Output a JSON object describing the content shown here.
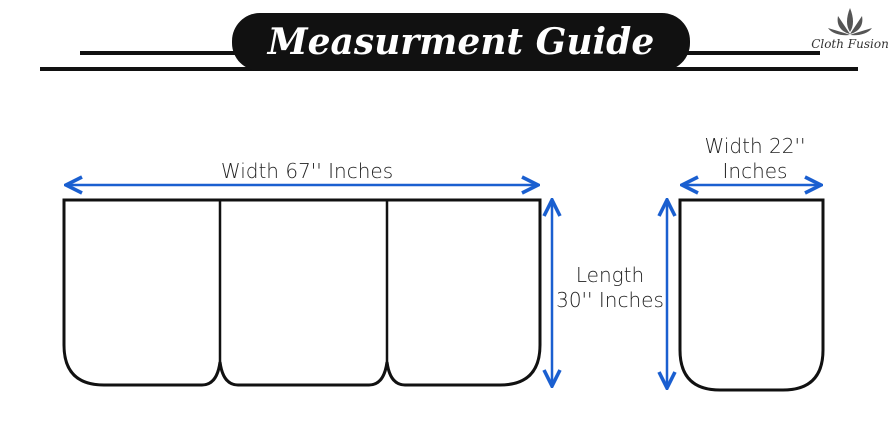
{
  "header": {
    "title": "Measurment Guide"
  },
  "brand": {
    "logo_text": "Cloth Fusion",
    "watermark_text": "Cloth Fusion"
  },
  "valance": {
    "width_label": "Width 67'' Inches",
    "length_line1": "Length",
    "length_line2": "30'' Inches",
    "panels": 3
  },
  "side_panel": {
    "width_line1": "Width 22''",
    "width_line2": "Inches"
  },
  "colors": {
    "arrow": "#1a5fd0",
    "outline": "#111111",
    "banner": "#111111"
  }
}
